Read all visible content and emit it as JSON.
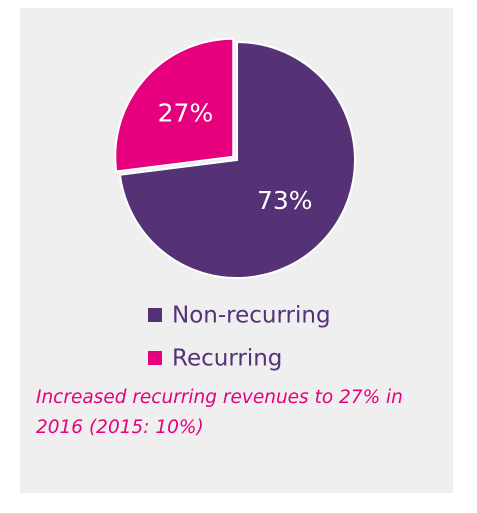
{
  "chart_data": {
    "type": "pie",
    "categories": [
      "Non-recurring",
      "Recurring"
    ],
    "values": [
      73,
      27
    ],
    "value_labels": [
      "73%",
      "27%"
    ],
    "colors": [
      "#553176",
      "#e6007e"
    ],
    "annotation": "Increased recurring revenues to 27% in 2016 (2015: 10%)"
  }
}
